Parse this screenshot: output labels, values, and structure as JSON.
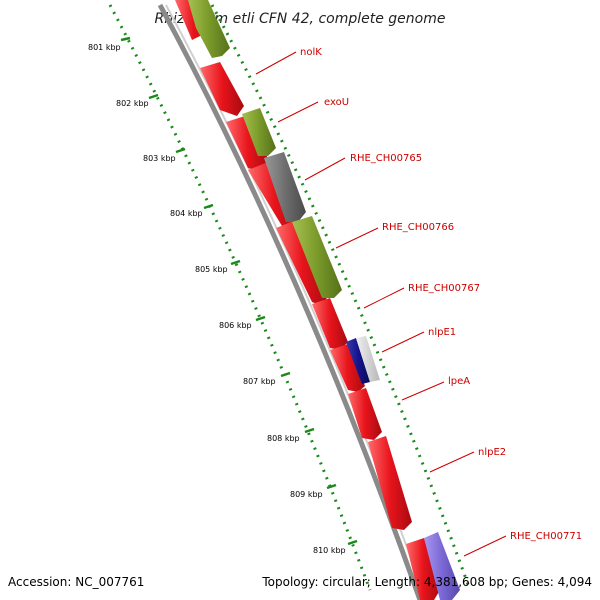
{
  "title": "Rhizobium etli CFN 42, complete genome",
  "accession": "Accession: NC_007761",
  "stats": "Topology: circular; Length: 4,381,608 bp; Genes: 4,094",
  "ruler": [
    "801 kbp",
    "802 kbp",
    "803 kbp",
    "804 kbp",
    "805 kbp",
    "806 kbp",
    "807 kbp",
    "808 kbp",
    "809 kbp",
    "810 kbp"
  ],
  "genes": [
    {
      "label": "nolK",
      "color": "#e8141c"
    },
    {
      "label": "exoU",
      "color": "#7a9a2a"
    },
    {
      "label": "RHE_CH00765",
      "color": "#6e6e6e"
    },
    {
      "label": "RHE_CH00766",
      "color": "#7a9a2a"
    },
    {
      "label": "RHE_CH00767",
      "color": "#e8141c"
    },
    {
      "label": "nlpE1",
      "color": "#14148c"
    },
    {
      "label": "lpeA",
      "color": "#e8141c"
    },
    {
      "label": "nlpE2",
      "color": "#e8141c"
    },
    {
      "label": "RHE_CH00771",
      "color": "#7b68d6"
    }
  ],
  "colors": {
    "cds_forward": "#e8141c",
    "olive": "#7a9a2a",
    "grey": "#6e6e6e",
    "navy": "#14148c",
    "lavender": "#7b68d6",
    "backbone": "#8a8a8a",
    "tick": "#1a8a1a",
    "label": "#cc0000"
  }
}
